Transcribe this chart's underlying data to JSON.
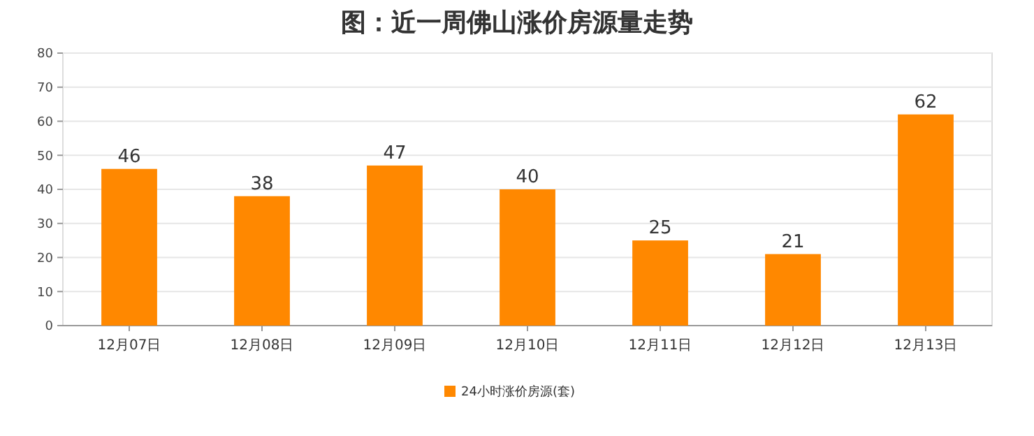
{
  "chart_data": {
    "type": "bar",
    "title": "图：近一周佛山涨价房源量走势",
    "categories": [
      "12月07日",
      "12月08日",
      "12月09日",
      "12月10日",
      "12月11日",
      "12月12日",
      "12月13日"
    ],
    "series": [
      {
        "name": "24小时涨价房源(套)",
        "color": "#ff8800",
        "values": [
          46,
          38,
          47,
          40,
          25,
          21,
          62
        ]
      }
    ],
    "ylim": [
      0,
      80
    ],
    "yticks": [
      0,
      10,
      20,
      30,
      40,
      50,
      60,
      70,
      80
    ],
    "grid": "y",
    "legend": "bottom",
    "data_labels": true
  }
}
